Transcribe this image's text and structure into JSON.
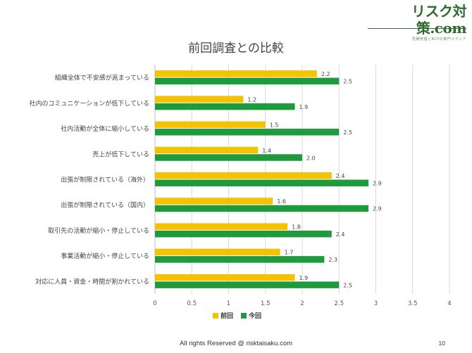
{
  "logo": {
    "text": "リスク対策.com",
    "tagline": "危機管理とBCPの専門メディア"
  },
  "footer": {
    "copyright": "All rights Reserved @ risktaisaku.com",
    "page_number": "10"
  },
  "colors": {
    "previous": "#f5c200",
    "current": "#1f9a3c",
    "grid": "#d9d9d9",
    "axis": "#bfbfbf"
  },
  "chart_data": {
    "type": "bar",
    "orientation": "horizontal",
    "title": "前回調査との比較",
    "categories": [
      "組織全体で不安感が高まっている",
      "社内のコミュニケーションが低下している",
      "社内活動が全体に縮小している",
      "売上が低下している",
      "出張が制限されている（海外）",
      "出張が制限されている（国内）",
      "取引先の活動が縮小・停止している",
      "事業活動が縮小・停止している",
      "対応に人員・資金・時間が割かれている"
    ],
    "series": [
      {
        "name": "前回",
        "values": [
          2.2,
          1.2,
          1.5,
          1.4,
          2.4,
          1.6,
          1.8,
          1.7,
          1.9
        ],
        "labels": [
          "2.2",
          "1.2",
          "1.5",
          "1.4",
          "2.4",
          "1.6",
          "1.8",
          "1.7",
          "1.9"
        ]
      },
      {
        "name": "今回",
        "values": [
          2.5,
          1.9,
          2.5,
          2.0,
          2.9,
          2.9,
          2.4,
          2.3,
          2.5
        ],
        "labels": [
          "2.5",
          "1.9",
          "2.5",
          "2.0",
          "2.9",
          "2.9",
          "2.4",
          "2.3",
          "2.5"
        ]
      }
    ],
    "xlim": [
      0,
      4
    ],
    "x_ticks": [
      0,
      0.5,
      1,
      1.5,
      2,
      2.5,
      3,
      3.5,
      4
    ],
    "x_tick_labels": [
      "0",
      "0.5",
      "1",
      "1.5",
      "2",
      "2.5",
      "3",
      "3.5",
      "4"
    ],
    "grid": true,
    "legend_position": "bottom"
  }
}
